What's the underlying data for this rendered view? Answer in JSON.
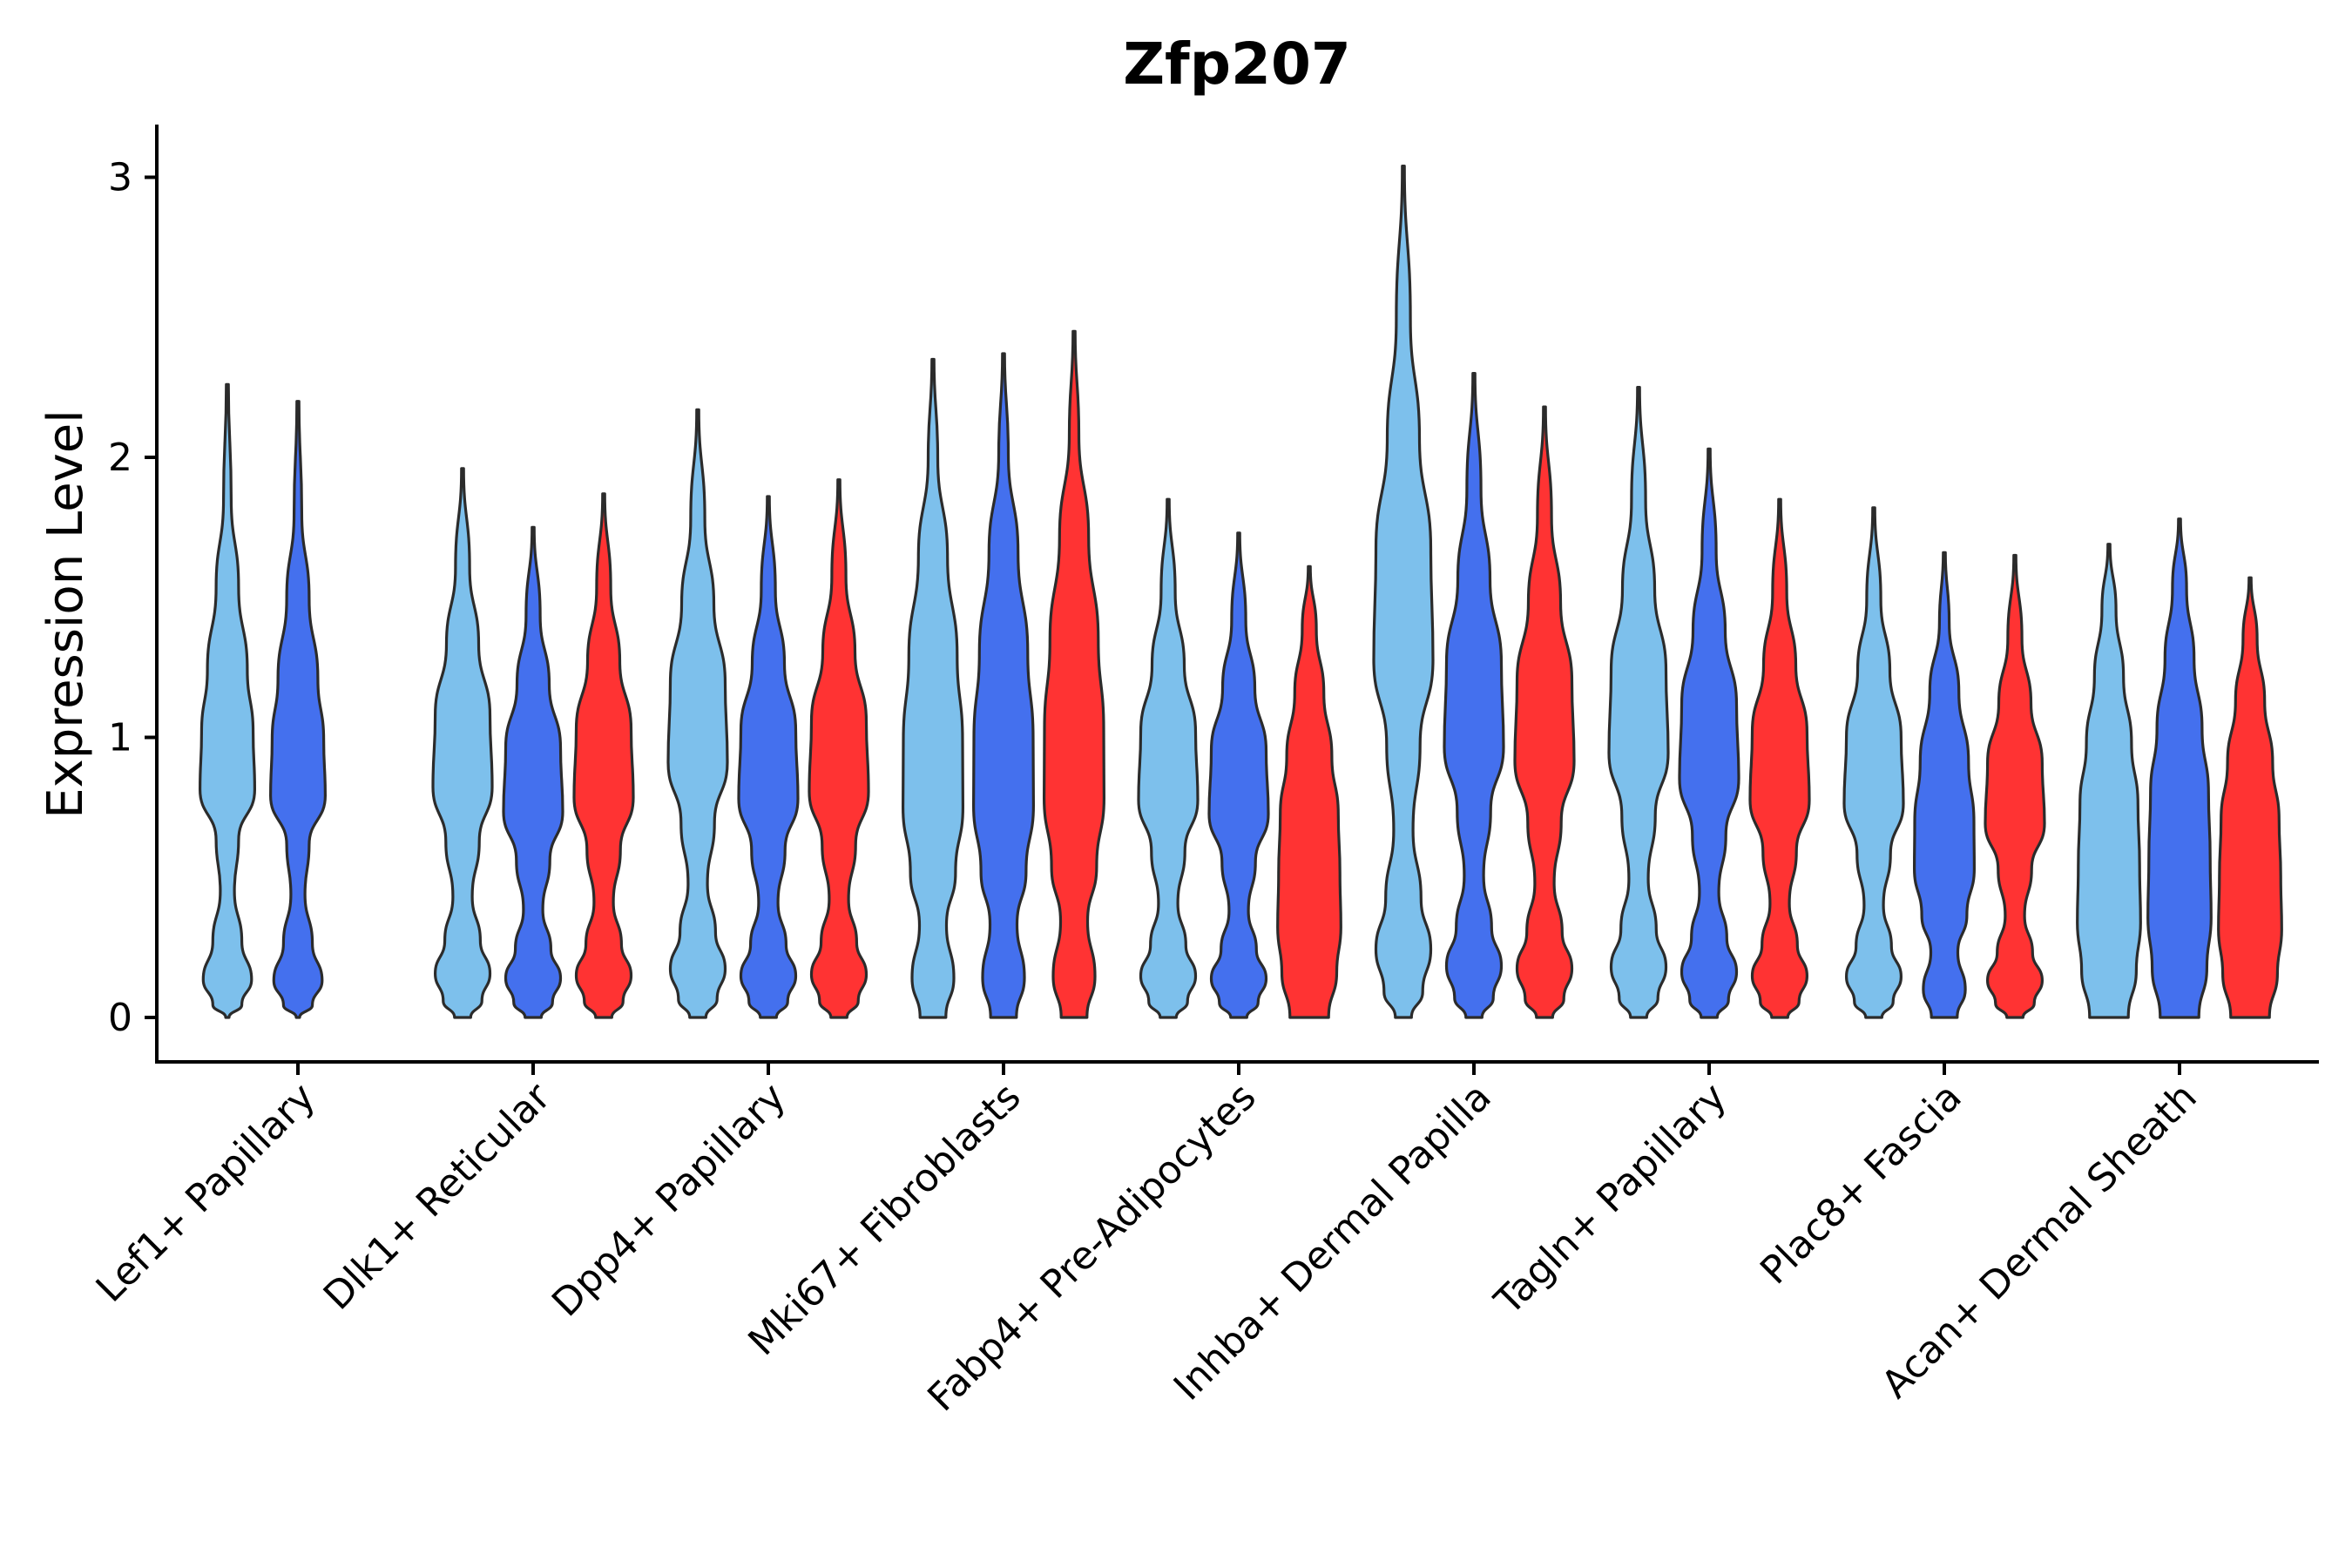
{
  "chart_data": {
    "type": "violin",
    "title": "Zfp207",
    "xlabel": "",
    "ylabel": "Expression Level",
    "ylim": [
      -0.15,
      3.2
    ],
    "yticks": [
      0,
      1,
      2,
      3
    ],
    "ytick_labels": [
      "0",
      "1",
      "2",
      "3"
    ],
    "categories": [
      "Lef1+ Papillary",
      "Dlk1+ Reticular",
      "Dpp4+ Papillary",
      "Mki67+ Fibroblasts",
      "Fabp4+ Pre-Adipocytes",
      "Inhba+ Dermal Papilla",
      "Tagln+ Papillary",
      "Plac8+ Fascia",
      "Acan+ Dermal Sheath"
    ],
    "series": [
      {
        "name": "group-1",
        "color": "#7dc0ec",
        "max": [
          2.26,
          1.96,
          2.17,
          2.35,
          1.85,
          3.04,
          2.25,
          1.82,
          1.69
        ]
      },
      {
        "name": "group-2",
        "color": "#4470ee",
        "max": [
          2.2,
          1.75,
          1.86,
          2.37,
          1.73,
          2.3,
          2.03,
          1.66,
          1.78
        ]
      },
      {
        "name": "group-3",
        "color": "#ff3333",
        "max": [
          null,
          1.87,
          1.92,
          2.45,
          1.61,
          2.18,
          1.85,
          1.65,
          1.57
        ]
      }
    ],
    "grid": false,
    "legend": "none"
  }
}
